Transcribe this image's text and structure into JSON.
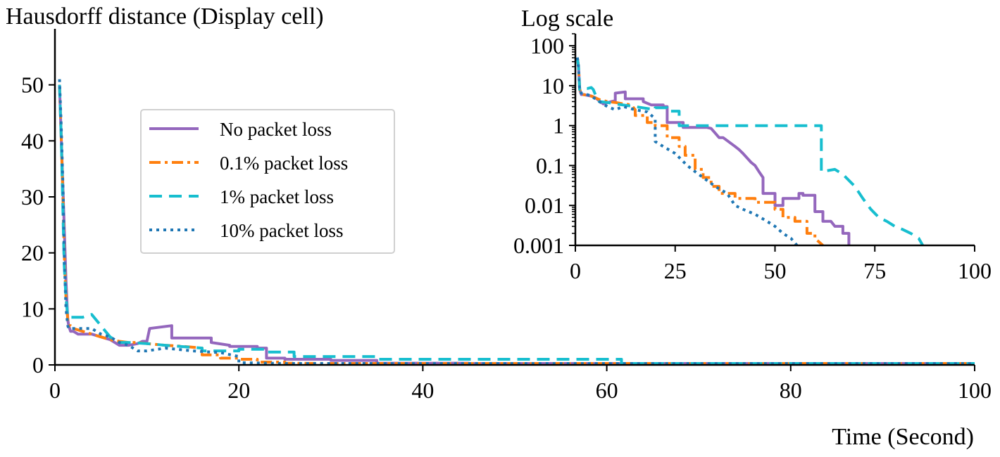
{
  "colors": {
    "no_loss": "#9467bd",
    "loss_0_1": "#ff7f0e",
    "loss_1": "#17becf",
    "loss_10": "#1f77b4"
  },
  "chart_data": [
    {
      "id": "main",
      "type": "line",
      "title": "Hausdorff distance (Display cell)",
      "xlabel": "Time (Second)",
      "ylabel": "",
      "xlim": [
        0,
        100
      ],
      "ylim": [
        0,
        60
      ],
      "xticks": [
        0,
        20,
        40,
        60,
        80,
        100
      ],
      "yticks": [
        0,
        10,
        20,
        30,
        40,
        50
      ],
      "grid": false,
      "legend": "upper-middle-left",
      "series": [
        {
          "name": "No packet loss",
          "style": "solid",
          "color_key": "no_loss",
          "x": [
            0.5,
            0.7,
            0.9,
            1.0,
            1.2,
            1.4,
            1.5,
            1.7,
            2.0,
            2.5,
            3,
            4,
            5,
            6,
            7,
            8,
            9,
            9.5,
            10,
            10.3,
            12.7,
            12.7,
            17,
            17,
            19,
            19,
            22,
            22,
            23,
            23,
            25,
            25,
            30,
            30,
            35,
            35,
            45,
            45,
            60,
            60,
            100
          ],
          "y": [
            50,
            40,
            30,
            25,
            15,
            8,
            7,
            6,
            6,
            5.5,
            5.5,
            5.5,
            5,
            4.5,
            3.5,
            3.5,
            3.8,
            4.2,
            4.2,
            6.5,
            7,
            4.8,
            4.8,
            4,
            3.5,
            3.3,
            3.3,
            3,
            3,
            1.2,
            1.2,
            1,
            1,
            0.8,
            0.8,
            0.3,
            0.3,
            0.1,
            0.1,
            0.02,
            0.01
          ]
        },
        {
          "name": "0.1% packet loss",
          "style": "dashdot",
          "color_key": "loss_0_1",
          "x": [
            0.5,
            0.7,
            0.9,
            1.0,
            1.2,
            1.4,
            1.5,
            1.7,
            2.0,
            3,
            4,
            5,
            6,
            7,
            8,
            9,
            10,
            12,
            14,
            16,
            16,
            18,
            18,
            20,
            20,
            22,
            22,
            25,
            25,
            30,
            40,
            60,
            100
          ],
          "y": [
            50,
            40,
            28,
            20,
            12,
            8,
            7,
            7,
            6.5,
            6,
            5.5,
            5,
            4.5,
            4.2,
            4,
            4,
            3.8,
            3.5,
            3.3,
            3,
            1.8,
            1.8,
            1.2,
            1.2,
            1,
            1,
            0.5,
            0.5,
            0.3,
            0.2,
            0.05,
            0.01,
            0.005
          ]
        },
        {
          "name": "1% packet loss",
          "style": "dashed",
          "color_key": "loss_1",
          "x": [
            0.5,
            0.7,
            0.9,
            1.0,
            1.2,
            1.4,
            1.5,
            2,
            2.5,
            3,
            4,
            4.5,
            5,
            5.5,
            6,
            7,
            8,
            10,
            12,
            16,
            16,
            20,
            20,
            23,
            23,
            26,
            26,
            35,
            35,
            61.6,
            61.6,
            65,
            70,
            80,
            87,
            100
          ],
          "y": [
            50,
            40,
            25,
            18,
            12,
            8.5,
            8.5,
            8.5,
            8.5,
            8.5,
            9,
            8,
            7,
            6,
            5,
            4,
            4,
            3.8,
            3.5,
            3,
            2.5,
            2.5,
            2.8,
            2.8,
            2.3,
            2.3,
            1.5,
            1.5,
            1,
            1,
            0.08,
            0.05,
            0.01,
            0.003,
            0.001,
            0.001
          ]
        },
        {
          "name": "10% packet loss",
          "style": "dotted",
          "color_key": "loss_10",
          "x": [
            0.5,
            0.7,
            0.9,
            1.0,
            1.2,
            1.4,
            1.5,
            2,
            3,
            4,
            5,
            6,
            7,
            8,
            9,
            10,
            12,
            15,
            18,
            20,
            20,
            25,
            30,
            35,
            45,
            56,
            100
          ],
          "y": [
            51,
            42,
            30,
            20,
            10,
            7,
            6.5,
            6.5,
            6.5,
            6.5,
            5.5,
            5,
            4,
            3.5,
            2.5,
            2.5,
            3,
            2.5,
            2.2,
            1.5,
            0.4,
            0.2,
            0.1,
            0.04,
            0.01,
            0.001,
            0.001
          ]
        }
      ]
    },
    {
      "id": "inset",
      "type": "line",
      "title": "Log scale",
      "xlabel": "",
      "ylabel": "",
      "yscale": "log",
      "xlim": [
        0,
        100
      ],
      "ylim": [
        0.001,
        200
      ],
      "xticks": [
        0,
        25,
        50,
        75,
        100
      ],
      "yticks": [
        0.001,
        0.01,
        0.1,
        1,
        10,
        100
      ],
      "ytick_labels": [
        "0.001",
        "0.01",
        "0.1",
        "1",
        "10",
        "100"
      ],
      "grid": false,
      "series": [
        {
          "style": "solid",
          "color_key": "no_loss",
          "x": [
            0.5,
            0.8,
            1.1,
            1.5,
            2,
            4,
            5,
            7,
            9,
            10,
            10,
            12.5,
            12.5,
            17,
            17,
            19,
            22,
            22,
            23,
            23,
            27,
            27,
            30,
            31,
            33,
            34,
            36,
            37,
            40,
            41,
            42,
            44,
            45,
            46,
            47,
            47,
            50,
            50,
            52,
            52,
            56,
            56,
            57,
            57,
            60,
            60,
            62,
            62,
            64,
            65,
            67,
            67,
            68.5,
            68.5
          ],
          "y": [
            50,
            30,
            8,
            6,
            6,
            5.5,
            5,
            3.5,
            4,
            4.2,
            6.5,
            7,
            4.7,
            4.7,
            4,
            3.3,
            3.3,
            3,
            3,
            1.2,
            1.2,
            0.9,
            0.9,
            0.9,
            0.9,
            0.85,
            0.5,
            0.5,
            0.3,
            0.25,
            0.2,
            0.12,
            0.1,
            0.07,
            0.05,
            0.02,
            0.02,
            0.01,
            0.01,
            0.015,
            0.015,
            0.02,
            0.02,
            0.018,
            0.018,
            0.007,
            0.007,
            0.004,
            0.004,
            0.003,
            0.003,
            0.002,
            0.002,
            0.001
          ]
        },
        {
          "style": "dashdot",
          "color_key": "loss_0_1",
          "x": [
            0.5,
            0.8,
            1.1,
            1.5,
            2,
            4,
            6,
            8,
            10,
            12,
            14,
            15,
            15,
            18,
            18,
            20,
            20,
            23,
            23,
            26,
            26,
            27.5,
            27.5,
            30,
            30,
            32,
            32,
            34,
            34,
            36,
            36,
            40,
            40,
            45,
            45,
            50,
            50,
            52,
            52,
            55,
            55,
            58,
            58,
            60,
            60,
            62
          ],
          "y": [
            50,
            30,
            8,
            6.5,
            6,
            5.5,
            4.5,
            4,
            3.8,
            3.5,
            3.3,
            2.5,
            1.8,
            1.8,
            1.2,
            1.2,
            1,
            1,
            0.5,
            0.5,
            0.3,
            0.3,
            0.18,
            0.18,
            0.08,
            0.08,
            0.05,
            0.05,
            0.03,
            0.03,
            0.02,
            0.02,
            0.015,
            0.015,
            0.012,
            0.012,
            0.008,
            0.008,
            0.005,
            0.005,
            0.004,
            0.004,
            0.002,
            0.002,
            0.0015,
            0.001
          ]
        },
        {
          "style": "dashed",
          "color_key": "loss_1",
          "x": [
            0.5,
            0.8,
            1.1,
            1.5,
            2,
            3,
            4,
            4.5,
            5,
            6,
            8,
            10,
            15,
            20,
            20,
            23,
            23,
            26,
            26,
            61.6,
            61.6,
            65,
            67,
            70,
            72,
            74,
            76,
            78,
            80,
            82,
            84,
            86,
            87
          ],
          "y": [
            50,
            30,
            8,
            8.5,
            8.5,
            8.5,
            9,
            8,
            6,
            4,
            3.8,
            3.5,
            3,
            2.5,
            2.8,
            2.8,
            2.3,
            2.3,
            1,
            1,
            0.07,
            0.08,
            0.06,
            0.03,
            0.015,
            0.008,
            0.005,
            0.004,
            0.003,
            0.0025,
            0.002,
            0.0015,
            0.001
          ]
        },
        {
          "style": "dotted",
          "color_key": "loss_10",
          "x": [
            0.5,
            0.8,
            1.1,
            1.5,
            2,
            4,
            6,
            8,
            10,
            12,
            15,
            18,
            20,
            20,
            22,
            25,
            28,
            30,
            32,
            35,
            38,
            40,
            42,
            45,
            48,
            50,
            52,
            54,
            55.5
          ],
          "y": [
            51,
            30,
            7,
            6.5,
            6.5,
            5.5,
            4,
            3,
            2.5,
            3,
            2.5,
            2.2,
            1.5,
            0.4,
            0.3,
            0.2,
            0.1,
            0.07,
            0.05,
            0.03,
            0.02,
            0.01,
            0.008,
            0.006,
            0.004,
            0.003,
            0.002,
            0.0015,
            0.001
          ]
        }
      ]
    }
  ]
}
